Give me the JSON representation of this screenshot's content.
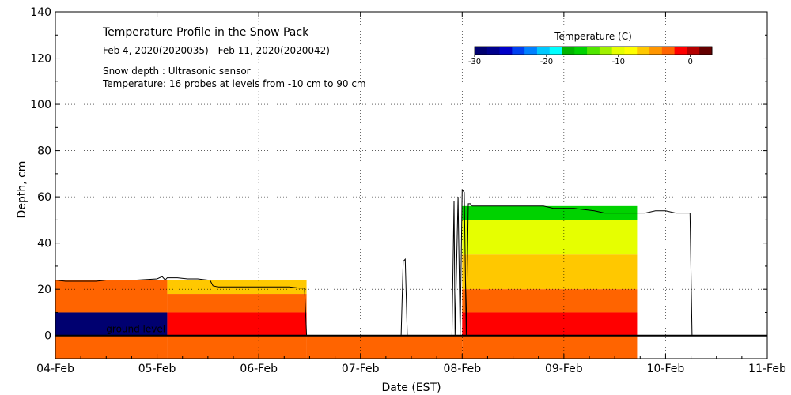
{
  "chart_data": {
    "type": "heatmap",
    "title": "Temperature Profile in the Snow Pack",
    "subtitle": "Feb  4, 2020(2020035) - Feb 11, 2020(2020042)",
    "notes": [
      "Snow depth : Ultrasonic sensor",
      "Temperature: 16 probes at levels from -10 cm to 90 cm"
    ],
    "xlabel": "Date (EST)",
    "ylabel": "Depth, cm",
    "x_ticks": [
      "04-Feb",
      "05-Feb",
      "06-Feb",
      "07-Feb",
      "08-Feb",
      "09-Feb",
      "10-Feb",
      "11-Feb"
    ],
    "xlim": [
      0,
      7
    ],
    "ylim": [
      -10,
      140
    ],
    "y_ticks": [
      0,
      20,
      40,
      60,
      80,
      100,
      120,
      140
    ],
    "grid": true,
    "ground_label": "ground level",
    "colorbar": {
      "title": "Temperature (C)",
      "range": [
        -30,
        3
      ],
      "tick_values": [
        -30,
        -20,
        -10,
        0
      ],
      "tick_labels": [
        "-30",
        "-20",
        "-10",
        "0"
      ],
      "colors": [
        "#000070",
        "#00008c",
        "#0000c8",
        "#0040f0",
        "#0080ff",
        "#00c8ff",
        "#00ffff",
        "#00b400",
        "#00d200",
        "#50e600",
        "#a0f000",
        "#e6ff00",
        "#ffff00",
        "#ffc800",
        "#ff9600",
        "#ff6400",
        "#ff0000",
        "#b40000",
        "#640000"
      ]
    },
    "snow_depth": {
      "x": [
        0.0,
        0.1,
        0.2,
        0.3,
        0.4,
        0.5,
        0.6,
        0.7,
        0.8,
        1.0,
        1.05,
        1.08,
        1.1,
        1.2,
        1.3,
        1.4,
        1.5,
        1.52,
        1.55,
        1.6,
        1.7,
        1.8,
        1.9,
        2.0,
        2.1,
        2.2,
        2.3,
        2.4,
        2.45,
        2.47,
        3.4,
        3.42,
        3.44,
        3.46,
        3.48,
        3.5,
        3.9,
        3.92,
        3.93,
        3.96,
        3.98,
        4.0,
        4.02,
        4.04,
        4.06,
        4.08,
        4.1,
        4.12,
        4.2,
        4.3,
        4.4,
        4.5,
        4.6,
        4.7,
        4.8,
        4.9,
        5.0,
        5.1,
        5.2,
        5.3,
        5.4,
        5.5,
        5.6,
        5.7,
        5.8,
        5.9,
        6.0,
        6.1,
        6.15,
        6.2,
        6.22,
        6.24,
        6.26
      ],
      "depth_cm": [
        24,
        23.5,
        23.5,
        23.5,
        23.5,
        24,
        24,
        24,
        24,
        24.5,
        25.5,
        24,
        25,
        25,
        24.5,
        24.5,
        24,
        24,
        21.5,
        21,
        21,
        21,
        21,
        21,
        21,
        21,
        21,
        20.5,
        20.5,
        -1,
        -1,
        32,
        33,
        -1,
        -1,
        -1,
        -1,
        58,
        -1,
        60,
        -1,
        63,
        62,
        -1,
        57,
        57,
        56,
        56,
        56,
        56,
        56,
        56,
        56,
        56,
        56,
        55,
        55,
        55,
        54.5,
        54,
        53,
        53,
        53,
        53,
        53,
        54,
        54,
        53,
        53,
        53,
        53,
        53,
        0
      ]
    },
    "temperature_bands": [
      {
        "x_start": 0.0,
        "x_end": 1.1,
        "layers": [
          {
            "bottom": 10,
            "top": 24,
            "temp": -3
          },
          {
            "bottom": 0,
            "top": 10,
            "temp": -30
          },
          {
            "bottom": -10,
            "top": 0,
            "temp": -3
          }
        ]
      },
      {
        "x_start": 1.1,
        "x_end": 2.47,
        "layers": [
          {
            "bottom": 18,
            "top": 24,
            "temp": -7
          },
          {
            "bottom": 10,
            "top": 18,
            "temp": -3
          },
          {
            "bottom": 0,
            "top": 10,
            "temp": -1
          },
          {
            "bottom": -10,
            "top": 0,
            "temp": -3
          }
        ]
      },
      {
        "x_start": 2.47,
        "x_end": 4.0,
        "layers": [
          {
            "bottom": -10,
            "top": 0,
            "temp": -3
          }
        ]
      },
      {
        "x_start": 4.0,
        "x_end": 5.72,
        "layers": [
          {
            "bottom": 50,
            "top": 56,
            "temp": -15
          },
          {
            "bottom": 35,
            "top": 50,
            "temp": -10
          },
          {
            "bottom": 20,
            "top": 35,
            "temp": -7
          },
          {
            "bottom": 10,
            "top": 20,
            "temp": -3
          },
          {
            "bottom": 0,
            "top": 10,
            "temp": -1
          },
          {
            "bottom": -10,
            "top": 0,
            "temp": -3
          }
        ]
      }
    ]
  }
}
